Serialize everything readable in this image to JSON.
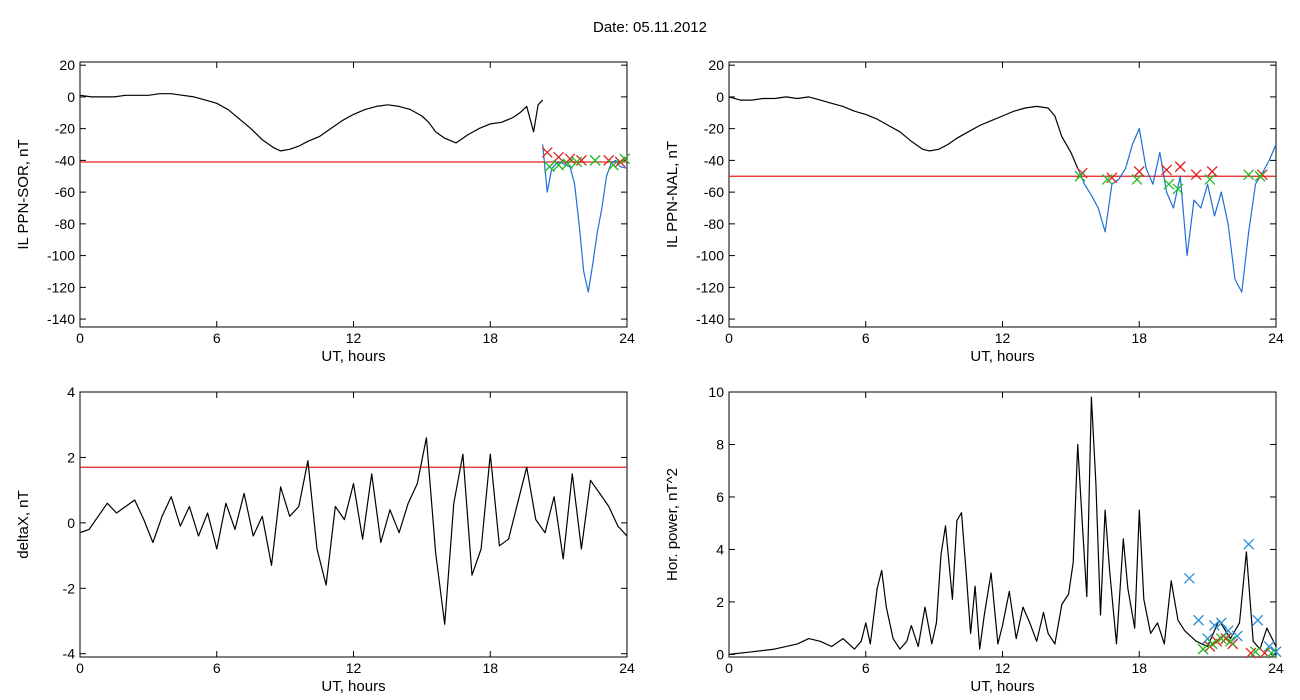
{
  "figure": {
    "title": "Date:  05.11.2012"
  },
  "chart_data": [
    {
      "type": "line",
      "ylabel": "IL PPN-SOR, nT",
      "xlabel": "UT, hours",
      "xlim": [
        0,
        24
      ],
      "ylim": [
        -145,
        22
      ],
      "xticks": [
        0,
        6,
        12,
        18,
        24
      ],
      "yticks": [
        20,
        0,
        -20,
        -40,
        -60,
        -80,
        -100,
        -120,
        -140
      ],
      "threshold": -41,
      "series": [
        {
          "color": "#000000",
          "role": "main",
          "x": [
            0,
            0.5,
            1,
            1.5,
            2,
            2.5,
            3,
            3.5,
            4,
            4.5,
            5,
            5.5,
            6,
            6.5,
            7,
            7.5,
            8,
            8.5,
            8.8,
            9.2,
            9.6,
            10,
            10.5,
            11,
            11.5,
            12,
            12.5,
            13,
            13.5,
            14,
            14.5,
            15,
            15.3,
            15.6,
            16,
            16.5,
            17,
            17.5,
            18,
            18.5,
            19,
            19.3,
            19.6,
            19.9,
            20.1,
            20.3
          ],
          "y": [
            1,
            0,
            0,
            0,
            1,
            1,
            1,
            2,
            2,
            1,
            0,
            -2,
            -4,
            -8,
            -14,
            -20,
            -27,
            -32,
            -34,
            -33,
            -31,
            -28,
            -25,
            -20,
            -15,
            -11,
            -8,
            -6,
            -5,
            -6,
            -8,
            -12,
            -16,
            -22,
            -26,
            -29,
            -24,
            -20,
            -17,
            -16,
            -13,
            -10,
            -6,
            -22,
            -5,
            -2
          ]
        },
        {
          "color": "#1f6fd6",
          "role": "disturbed",
          "x": [
            20.3,
            20.5,
            20.7,
            20.9,
            21.1,
            21.3,
            21.5,
            21.7,
            21.9,
            22.1,
            22.3,
            22.5,
            22.7,
            22.9,
            23.1,
            23.3,
            23.5,
            23.7,
            24
          ],
          "y": [
            -30,
            -60,
            -45,
            -42,
            -41,
            -43,
            -44,
            -55,
            -80,
            -110,
            -123,
            -105,
            -85,
            -70,
            -50,
            -42,
            -40,
            -44,
            -45
          ]
        }
      ],
      "markers": {
        "red": [
          [
            20.5,
            -35
          ],
          [
            21,
            -38
          ],
          [
            21.5,
            -39
          ],
          [
            22,
            -40
          ],
          [
            23.2,
            -40
          ],
          [
            23.7,
            -41
          ]
        ],
        "green": [
          [
            20.6,
            -44
          ],
          [
            21,
            -43
          ],
          [
            21.4,
            -42
          ],
          [
            21.8,
            -41
          ],
          [
            22.6,
            -40
          ],
          [
            23.4,
            -43
          ],
          [
            23.9,
            -39
          ]
        ]
      }
    },
    {
      "type": "line",
      "ylabel": "IL PPN-NAL, nT",
      "xlabel": "UT, hours",
      "xlim": [
        0,
        24
      ],
      "ylim": [
        -145,
        22
      ],
      "xticks": [
        0,
        6,
        12,
        18,
        24
      ],
      "yticks": [
        20,
        0,
        -20,
        -40,
        -60,
        -80,
        -100,
        -120,
        -140
      ],
      "threshold": -50,
      "series": [
        {
          "color": "#000000",
          "role": "main",
          "x": [
            0,
            0.5,
            1,
            1.5,
            2,
            2.5,
            3,
            3.5,
            4,
            4.5,
            5,
            5.5,
            6,
            6.5,
            7,
            7.5,
            8,
            8.5,
            8.8,
            9.2,
            9.6,
            10,
            10.5,
            11,
            11.5,
            12,
            12.5,
            13,
            13.5,
            14,
            14.3,
            14.6,
            15,
            15.3
          ],
          "y": [
            0,
            -2,
            -2,
            -1,
            -1,
            0,
            -1,
            0,
            -2,
            -4,
            -6,
            -9,
            -11,
            -14,
            -18,
            -22,
            -28,
            -33,
            -34,
            -33,
            -30,
            -26,
            -22,
            -18,
            -15,
            -12,
            -9,
            -7,
            -6,
            -7,
            -12,
            -25,
            -35,
            -45
          ]
        },
        {
          "color": "#1f6fd6",
          "role": "disturbed",
          "x": [
            15.3,
            15.6,
            15.9,
            16.2,
            16.5,
            16.8,
            17.1,
            17.4,
            17.7,
            18,
            18.3,
            18.6,
            18.9,
            19.2,
            19.5,
            19.8,
            20.1,
            20.4,
            20.7,
            21,
            21.3,
            21.6,
            21.9,
            22.2,
            22.5,
            22.8,
            23.1,
            23.4,
            23.7,
            24
          ],
          "y": [
            -45,
            -55,
            -62,
            -70,
            -85,
            -55,
            -52,
            -45,
            -30,
            -20,
            -45,
            -55,
            -35,
            -60,
            -70,
            -50,
            -100,
            -65,
            -70,
            -55,
            -75,
            -60,
            -80,
            -115,
            -123,
            -85,
            -55,
            -48,
            -40,
            -30
          ]
        }
      ],
      "markers": {
        "red": [
          [
            15.5,
            -48
          ],
          [
            16.8,
            -51
          ],
          [
            18,
            -47
          ],
          [
            19.2,
            -46
          ],
          [
            19.8,
            -44
          ],
          [
            20.5,
            -49
          ],
          [
            21.2,
            -47
          ],
          [
            23.4,
            -49
          ]
        ],
        "green": [
          [
            15.4,
            -50
          ],
          [
            16.6,
            -52
          ],
          [
            17.9,
            -52
          ],
          [
            19.3,
            -55
          ],
          [
            19.7,
            -58
          ],
          [
            21.1,
            -52
          ],
          [
            22.8,
            -49
          ],
          [
            23.3,
            -50
          ]
        ]
      }
    },
    {
      "type": "line",
      "ylabel": "deltaX, nT",
      "xlabel": "UT, hours",
      "xlim": [
        0,
        24
      ],
      "ylim": [
        -4.1,
        4
      ],
      "xticks": [
        0,
        6,
        12,
        18,
        24
      ],
      "yticks": [
        4,
        2,
        0,
        -2,
        -4
      ],
      "threshold": 1.7,
      "series": [
        {
          "color": "#000000",
          "role": "main",
          "x": [
            0,
            0.4,
            0.8,
            1.2,
            1.6,
            2,
            2.4,
            2.8,
            3.2,
            3.6,
            4,
            4.4,
            4.8,
            5.2,
            5.6,
            6,
            6.4,
            6.8,
            7.2,
            7.6,
            8,
            8.4,
            8.8,
            9.2,
            9.6,
            10,
            10.4,
            10.8,
            11.2,
            11.6,
            12,
            12.4,
            12.8,
            13.2,
            13.6,
            14,
            14.4,
            14.8,
            15.2,
            15.6,
            16,
            16.4,
            16.8,
            17.2,
            17.6,
            18,
            18.4,
            18.8,
            19.2,
            19.6,
            20,
            20.4,
            20.8,
            21.2,
            21.6,
            22,
            22.4,
            22.8,
            23.2,
            23.6,
            24
          ],
          "y": [
            -0.3,
            -0.2,
            0.2,
            0.6,
            0.3,
            0.5,
            0.7,
            0.1,
            -0.6,
            0.2,
            0.8,
            -0.1,
            0.5,
            -0.4,
            0.3,
            -0.8,
            0.6,
            -0.2,
            0.9,
            -0.4,
            0.2,
            -1.3,
            1.1,
            0.2,
            0.5,
            1.9,
            -0.8,
            -1.9,
            0.5,
            0.1,
            1.2,
            -0.5,
            1.5,
            -0.6,
            0.4,
            -0.3,
            0.6,
            1.2,
            2.6,
            -0.9,
            -3.1,
            0.6,
            2.1,
            -1.6,
            -0.8,
            2.1,
            -0.7,
            -0.5,
            0.6,
            1.7,
            0.1,
            -0.3,
            0.8,
            -1.1,
            1.5,
            -0.8,
            1.3,
            0.9,
            0.5,
            -0.1,
            -0.4
          ]
        }
      ],
      "markers": {
        "red": [],
        "green": []
      }
    },
    {
      "type": "line",
      "ylabel": "Hor. power, nT^2",
      "xlabel": "UT, hours",
      "xlim": [
        0,
        24
      ],
      "ylim": [
        -0.1,
        10
      ],
      "xticks": [
        0,
        6,
        12,
        18,
        24
      ],
      "yticks": [
        10,
        8,
        6,
        4,
        2,
        0
      ],
      "threshold": null,
      "series": [
        {
          "color": "#000000",
          "role": "main",
          "x": [
            0,
            1,
            2,
            3,
            3.5,
            4,
            4.5,
            5,
            5.5,
            5.8,
            6,
            6.2,
            6.5,
            6.7,
            6.9,
            7.2,
            7.5,
            7.8,
            8,
            8.3,
            8.6,
            8.9,
            9.1,
            9.3,
            9.5,
            9.8,
            10,
            10.2,
            10.4,
            10.6,
            10.8,
            11,
            11.2,
            11.5,
            11.8,
            12,
            12.3,
            12.6,
            12.9,
            13.2,
            13.5,
            13.8,
            14,
            14.3,
            14.6,
            14.9,
            15.1,
            15.3,
            15.5,
            15.7,
            15.9,
            16.1,
            16.3,
            16.5,
            16.7,
            17,
            17.3,
            17.5,
            17.8,
            18,
            18.2,
            18.5,
            18.8,
            19.1,
            19.4,
            19.7,
            20,
            20.5,
            21,
            21.5,
            22,
            22.4,
            22.7,
            23,
            23.3,
            23.6,
            24
          ],
          "y": [
            0,
            0.1,
            0.2,
            0.4,
            0.6,
            0.5,
            0.3,
            0.6,
            0.2,
            0.5,
            1.2,
            0.4,
            2.5,
            3.2,
            1.8,
            0.6,
            0.2,
            0.5,
            1.1,
            0.3,
            1.8,
            0.4,
            1.2,
            3.8,
            4.9,
            2.1,
            5.1,
            5.4,
            3.2,
            0.8,
            2.6,
            0.2,
            1.5,
            3.1,
            0.4,
            1.1,
            2.4,
            0.6,
            1.8,
            1.2,
            0.5,
            1.6,
            0.8,
            0.4,
            1.9,
            2.3,
            3.5,
            8,
            5,
            2.2,
            9.8,
            6.5,
            1.5,
            5.5,
            3.2,
            0.4,
            4.4,
            2.5,
            1,
            5.5,
            2.1,
            0.8,
            1.2,
            0.4,
            2.8,
            1.3,
            0.9,
            0.5,
            0.3,
            1.3,
            0.6,
            1.2,
            3.9,
            0.5,
            0.2,
            1.0,
            0.3
          ]
        }
      ],
      "markers": {
        "blue": [
          [
            20.2,
            2.9
          ],
          [
            20.6,
            1.3
          ],
          [
            21,
            0.6
          ],
          [
            21.3,
            1.1
          ],
          [
            21.6,
            1.2
          ],
          [
            21.9,
            0.9
          ],
          [
            22.3,
            0.7
          ],
          [
            22.8,
            4.2
          ],
          [
            23.2,
            1.3
          ],
          [
            23.7,
            0.3
          ],
          [
            24,
            0.1
          ]
        ],
        "red": [
          [
            21.1,
            0.3
          ],
          [
            21.4,
            0.5
          ],
          [
            21.8,
            0.6
          ],
          [
            22.1,
            0.4
          ],
          [
            22.9,
            0.05
          ],
          [
            23.5,
            0.05
          ]
        ],
        "green": [
          [
            20.8,
            0.2
          ],
          [
            21.2,
            0.4
          ],
          [
            21.6,
            0.6
          ],
          [
            22,
            0.5
          ],
          [
            23.1,
            0.1
          ],
          [
            23.8,
            0.05
          ]
        ]
      }
    }
  ]
}
